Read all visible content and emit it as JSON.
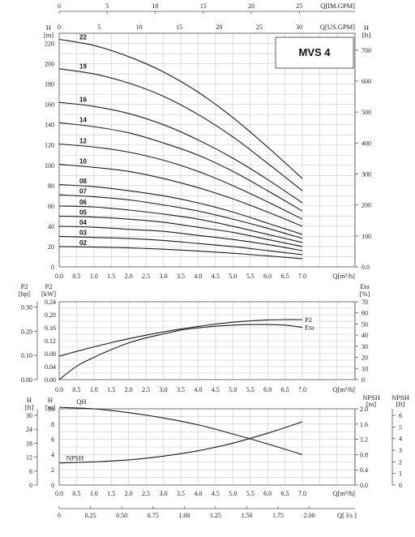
{
  "model_label": "MVS 4",
  "top_axes": {
    "im_gpm": {
      "label": "Q[IM.GPM]",
      "ticks": [
        "0",
        "5",
        "10",
        "15",
        "20",
        "25"
      ],
      "values": [
        0,
        5,
        10,
        15,
        20,
        25
      ],
      "max": 30.8
    },
    "us_gpm": {
      "label": "Q[US.GPM]",
      "ticks": [
        "0",
        "5",
        "10",
        "15",
        "20",
        "25",
        "30"
      ],
      "values": [
        0,
        5,
        10,
        15,
        20,
        25,
        30
      ],
      "max": 36.98
    }
  },
  "bottom_axis": {
    "label": "Q[ l/s ]",
    "ticks": [
      "0",
      "0.25",
      "0.50",
      "0.75",
      "1.00",
      "1.25",
      "1.50",
      "1.75",
      "2.00"
    ],
    "values": [
      0,
      0.25,
      0.5,
      0.75,
      1.0,
      1.25,
      1.5,
      1.75,
      2.0
    ],
    "max": 1.944
  },
  "chart_data": [
    {
      "type": "line",
      "name": "head-curves",
      "xlabel": "Q[m³/h]",
      "ylabel_left": "H [m]",
      "ylabel_right": "H [ft]",
      "xlim": [
        0,
        7.0
      ],
      "ylim": [
        0,
        230
      ],
      "y2lim": [
        0,
        754.6
      ],
      "x_ticks": [
        "0.0",
        "0.5",
        "1.0",
        "1.5",
        "2.0",
        "2.5",
        "3.0",
        "3.5",
        "4.0",
        "4.5",
        "5.0",
        "5.5",
        "6.0",
        "6.5",
        "7.0"
      ],
      "y_ticks": [
        "0",
        "20",
        "40",
        "60",
        "80",
        "100",
        "120",
        "140",
        "160",
        "180",
        "200",
        "220"
      ],
      "y2_ticks": [
        "0.0",
        "100",
        "200",
        "300",
        "400",
        "500",
        "600",
        "700"
      ],
      "grid": true,
      "x": [
        0,
        1,
        2,
        3,
        4,
        5,
        6,
        7
      ],
      "series": [
        {
          "name": "22",
          "values": [
            224,
            218,
            207,
            192,
            172,
            147,
            118,
            87
          ]
        },
        {
          "name": "19",
          "values": [
            195,
            190,
            181,
            168,
            150,
            128,
            102,
            75
          ]
        },
        {
          "name": "16",
          "values": [
            162,
            158,
            151,
            140,
            125,
            107,
            86,
            63
          ]
        },
        {
          "name": "14",
          "values": [
            142,
            138,
            132,
            122,
            110,
            94,
            75,
            55
          ]
        },
        {
          "name": "12",
          "values": [
            121,
            118,
            113,
            105,
            94,
            80,
            64,
            47
          ]
        },
        {
          "name": "10",
          "values": [
            101,
            98,
            94,
            87,
            78,
            67,
            54,
            40
          ]
        },
        {
          "name": "08",
          "values": [
            81,
            79,
            75,
            70,
            63,
            54,
            43,
            32
          ]
        },
        {
          "name": "07",
          "values": [
            71,
            69,
            66,
            61,
            55,
            47,
            38,
            28
          ]
        },
        {
          "name": "06",
          "values": [
            60,
            59,
            56,
            52,
            47,
            40,
            32,
            24
          ]
        },
        {
          "name": "05",
          "values": [
            50,
            49,
            47,
            44,
            39,
            34,
            27,
            20
          ]
        },
        {
          "name": "04",
          "values": [
            40,
            39,
            37,
            35,
            31,
            27,
            22,
            16
          ]
        },
        {
          "name": "03",
          "values": [
            30,
            29,
            28,
            26,
            23,
            20,
            16,
            12
          ]
        },
        {
          "name": "02",
          "values": [
            20,
            19.5,
            18.7,
            17.4,
            15.6,
            13.4,
            10.8,
            8
          ]
        }
      ]
    },
    {
      "type": "line",
      "name": "power-efficiency",
      "xlabel": "Q[m³/h]",
      "ylabel_left_outer": "P2 [hp]",
      "ylabel_left_inner": "P2 [kW]",
      "ylabel_right": "Eta [%]",
      "xlim": [
        0,
        7.0
      ],
      "ylim": [
        0,
        0.24
      ],
      "y_ticks": [
        "0.00",
        "0.02",
        "0.04",
        "0.06",
        "0.08",
        "0.10",
        "0.12",
        "0.14",
        "0.16",
        "0.18",
        "0.20",
        "0.22",
        "0.24"
      ],
      "y_ticks_labeled": [
        "0.00",
        "0.04",
        "0.08",
        "0.12",
        "0.16",
        "0.20",
        "0.24"
      ],
      "hp_ticks": [
        "0.00",
        "0.10",
        "0.20",
        "0.30"
      ],
      "hp_max": 0.3218,
      "eta_ticks": [
        "0",
        "10",
        "20",
        "30",
        "40",
        "50",
        "60",
        "70"
      ],
      "eta_max": 70,
      "x_ticks": [
        "0.0",
        "0.5",
        "1.0",
        "1.5",
        "2.0",
        "2.5",
        "3.0",
        "3.5",
        "4.0",
        "4.5",
        "5.0",
        "5.5",
        "6.0",
        "6.5",
        "7.0"
      ],
      "grid": true,
      "x": [
        0,
        0.5,
        1,
        1.5,
        2,
        2.5,
        3,
        3.5,
        4,
        4.5,
        5,
        5.5,
        6,
        6.5,
        7
      ],
      "series": [
        {
          "name": "Eta",
          "axis": "right",
          "values": [
            0,
            12,
            20,
            27,
            33,
            37.5,
            41,
            44.5,
            46.5,
            48,
            49,
            49.5,
            49.5,
            49,
            47
          ]
        },
        {
          "name": "P2",
          "axis": "left",
          "values": [
            0.072,
            0.087,
            0.101,
            0.114,
            0.126,
            0.137,
            0.147,
            0.156,
            0.164,
            0.171,
            0.177,
            0.181,
            0.184,
            0.185,
            0.185
          ]
        }
      ]
    },
    {
      "type": "line",
      "name": "qh-npsh",
      "xlabel": "Q[m³/h]",
      "ylabel_left_outer": "H [ft]",
      "ylabel_left_inner": "H [m]",
      "ylabel_right_inner": "NPSH [m]",
      "ylabel_right_outer": "NPSH [ft]",
      "xlim": [
        0,
        7.0
      ],
      "ylim": [
        0,
        10
      ],
      "y_ticks": [
        "0",
        "2",
        "4",
        "6",
        "8",
        "10"
      ],
      "ft_ticks": [
        "0",
        "6",
        "12",
        "18",
        "24",
        "30"
      ],
      "ft_max": 32.8,
      "npsh_ticks": [
        "0.0",
        "0.4",
        "0.8",
        "1.2",
        "1.6",
        "2.0"
      ],
      "npsh_max": 2.0,
      "npsh_ft_ticks": [
        "0",
        "1",
        "2",
        "3",
        "4",
        "5",
        "6"
      ],
      "npsh_ft_max": 6.56,
      "x_ticks": [
        "0.0",
        "0.5",
        "1.0",
        "1.5",
        "2.0",
        "2.5",
        "3.0",
        "3.5",
        "4.0",
        "4.5",
        "5.0",
        "5.5",
        "6.0",
        "6.5",
        "7.0"
      ],
      "grid": true,
      "x": [
        0,
        1,
        2,
        3,
        4,
        5,
        6,
        7
      ],
      "series": [
        {
          "name": "QH",
          "axis": "left",
          "values": [
            10.2,
            10.0,
            9.5,
            8.8,
            7.9,
            6.7,
            5.4,
            4.0
          ]
        },
        {
          "name": "NPSH",
          "axis": "right",
          "values": [
            0.58,
            0.61,
            0.66,
            0.76,
            0.9,
            1.1,
            1.36,
            1.66
          ]
        }
      ]
    }
  ]
}
